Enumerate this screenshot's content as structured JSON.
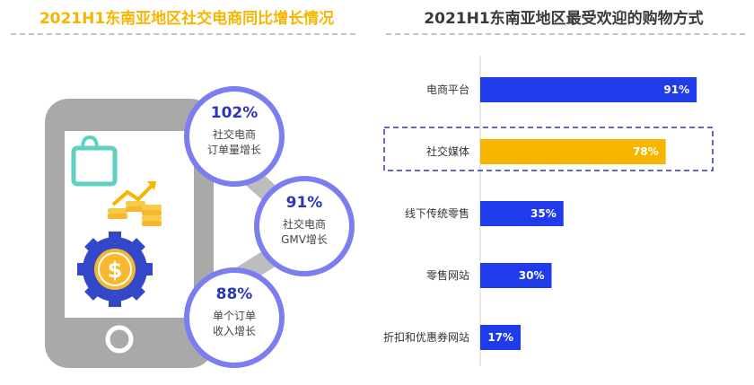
{
  "left_panel": {
    "title": "2021H1东南亚地区社交电商同比增长情况",
    "stats": [
      {
        "value": "102%",
        "label_line1": "社交电商",
        "label_line2": "订单量增长"
      },
      {
        "value": "91%",
        "label_line1": "社交电商",
        "label_line2": "GMV增长"
      },
      {
        "value": "88%",
        "label_line1": "单个订单",
        "label_line2": "收入增长"
      }
    ]
  },
  "right_panel": {
    "title": "2021H1东南亚地区最受欢迎的购物方式"
  },
  "colors": {
    "accent_yellow": "#F7B500",
    "bar_blue": "#1F3BEA",
    "circle_border": "#7B7DF0",
    "phone_gray": "#A9A9A9"
  },
  "chart_data": {
    "type": "bar",
    "orientation": "horizontal",
    "title": "2021H1东南亚地区最受欢迎的购物方式",
    "categories": [
      "电商平台",
      "社交媒体",
      "线下传统零售",
      "零售网站",
      "折扣和优惠券网站"
    ],
    "values": [
      91,
      78,
      35,
      30,
      17
    ],
    "value_labels": [
      "91%",
      "78%",
      "35%",
      "30%",
      "17%"
    ],
    "highlighted_category": "社交媒体",
    "xlim": [
      0,
      100
    ],
    "unit": "%"
  }
}
